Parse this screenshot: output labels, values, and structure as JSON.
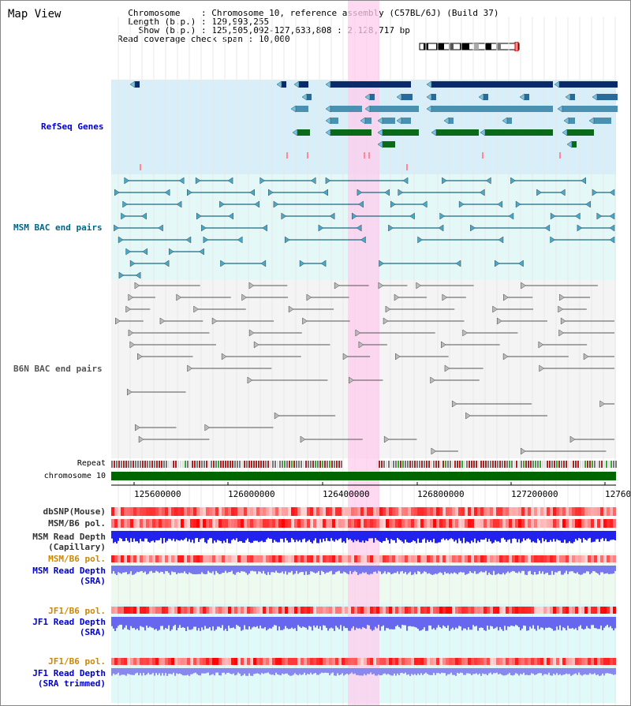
{
  "app": {
    "title": "Map View"
  },
  "info": {
    "chromosome_label": "Chromosome",
    "chromosome_value": "Chromosome 10, reference assembly (C57BL/6J) (Build 37)",
    "length_label": "Length (b.p.)",
    "length_value": "129,993,255",
    "show_label": "Show (b.p.)",
    "show_value": "125,505,092-127,633,808 : 2,128,717 bp",
    "coverage_label": "Read coverage check span",
    "coverage_value": "10,000"
  },
  "tracks": {
    "refseq": {
      "label": "RefSeq Genes",
      "color": "#0000cc"
    },
    "msm_bac": {
      "label": "MSM BAC end pairs",
      "color": "#006688"
    },
    "b6n_bac": {
      "label": "B6N BAC end pairs",
      "color": "#333333"
    },
    "repeat": {
      "label": "Repeat"
    },
    "chromosome": {
      "label": "chromosome 10",
      "color": "#006600"
    },
    "dbsnp": {
      "label": "dbSNP(Mouse)",
      "color": "#333333"
    },
    "msm_b6_pol": {
      "label": "MSM/B6 pol.",
      "color": "#333333"
    },
    "msm_depth_cap": {
      "label1": "MSM Read Depth",
      "label2": "(Capillary)",
      "color": "#333333"
    },
    "msm_b6_pol2": {
      "label": "MSM/B6 pol.",
      "color": "#cc8800"
    },
    "msm_depth_sra": {
      "label1": "MSM Read Depth",
      "label2": "(SRA)",
      "color": "#0000cc"
    },
    "jf1_b6_pol": {
      "label": "JF1/B6 pol.",
      "color": "#cc8800"
    },
    "jf1_depth_sra": {
      "label1": "JF1 Read Depth",
      "label2": "(SRA)",
      "color": "#0000cc"
    },
    "jf1_b6_pol2": {
      "label": "JF1/B6 pol.",
      "color": "#cc8800"
    },
    "jf1_depth_trim": {
      "label1": "JF1 Read Depth",
      "label2": "(SRA trimmed)",
      "color": "#0000cc"
    }
  },
  "axis": {
    "ticks": [
      "125600000",
      "126000000",
      "126400000",
      "126800000",
      "127200000",
      "12760"
    ]
  },
  "highlight": {
    "color": "#ffccee"
  }
}
